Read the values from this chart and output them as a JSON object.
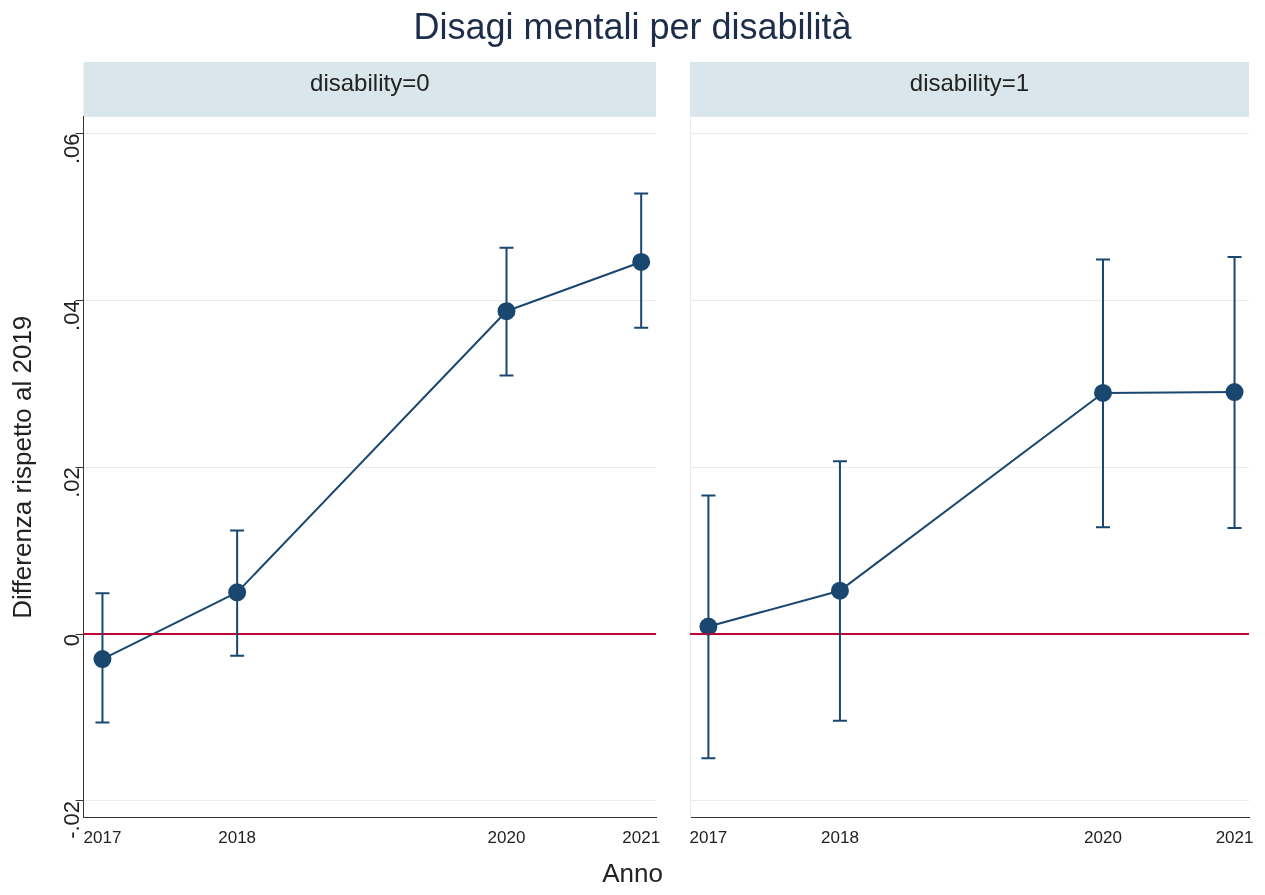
{
  "chart_data": [
    {
      "type": "line",
      "title": "Disagi mentali per disabilità",
      "subtitle": "disability=0",
      "xlabel": "Anno",
      "ylabel": "Differenza rispetto al 2019",
      "x": [
        2017,
        2018,
        2020,
        2021
      ],
      "xlim": [
        2016.86,
        2021.11
      ],
      "xticks": [
        2017,
        2018,
        2020,
        2021
      ],
      "ylim": [
        -0.022,
        0.062
      ],
      "yticks": [
        {
          "value": -0.02,
          "label": "-.02"
        },
        {
          "value": 0,
          "label": "0"
        },
        {
          "value": 0.02,
          "label": ".02"
        },
        {
          "value": 0.04,
          "label": ".04"
        },
        {
          "value": 0.06,
          "label": ".06"
        }
      ],
      "grid": "y",
      "marker": "circle",
      "series": [
        {
          "color": "#1a476f",
          "values": [
            -0.003,
            0.005,
            0.0387,
            0.0446
          ],
          "errors": [
            [
              -0.0106,
              0.0049
            ],
            [
              -0.0026,
              0.0124
            ],
            [
              0.031,
              0.0463
            ],
            [
              0.0367,
              0.0528
            ]
          ]
        }
      ],
      "ref_lines": [
        {
          "axis": "y",
          "value": 0,
          "color": "#c10534"
        }
      ]
    },
    {
      "type": "line",
      "subtitle": "disability=1",
      "x": [
        2017,
        2018,
        2020,
        2021
      ],
      "xlim": [
        2016.86,
        2021.11
      ],
      "xticks": [
        2017,
        2018,
        2020,
        2021
      ],
      "ylim": [
        -0.022,
        0.062
      ],
      "yticks": [
        -0.02,
        0,
        0.02,
        0.04,
        0.06
      ],
      "grid": "y",
      "marker": "circle",
      "tick_labels": "x",
      "series": [
        {
          "color": "#1a476f",
          "values": [
            0.0009,
            0.0052,
            0.0289,
            0.029
          ],
          "errors": [
            [
              -0.0149,
              0.0166
            ],
            [
              -0.0104,
              0.0207
            ],
            [
              0.0128,
              0.0449
            ],
            [
              0.0127,
              0.0452
            ]
          ]
        }
      ],
      "ref_lines": [
        {
          "axis": "y",
          "value": 0,
          "color": "#c10534"
        }
      ]
    }
  ]
}
